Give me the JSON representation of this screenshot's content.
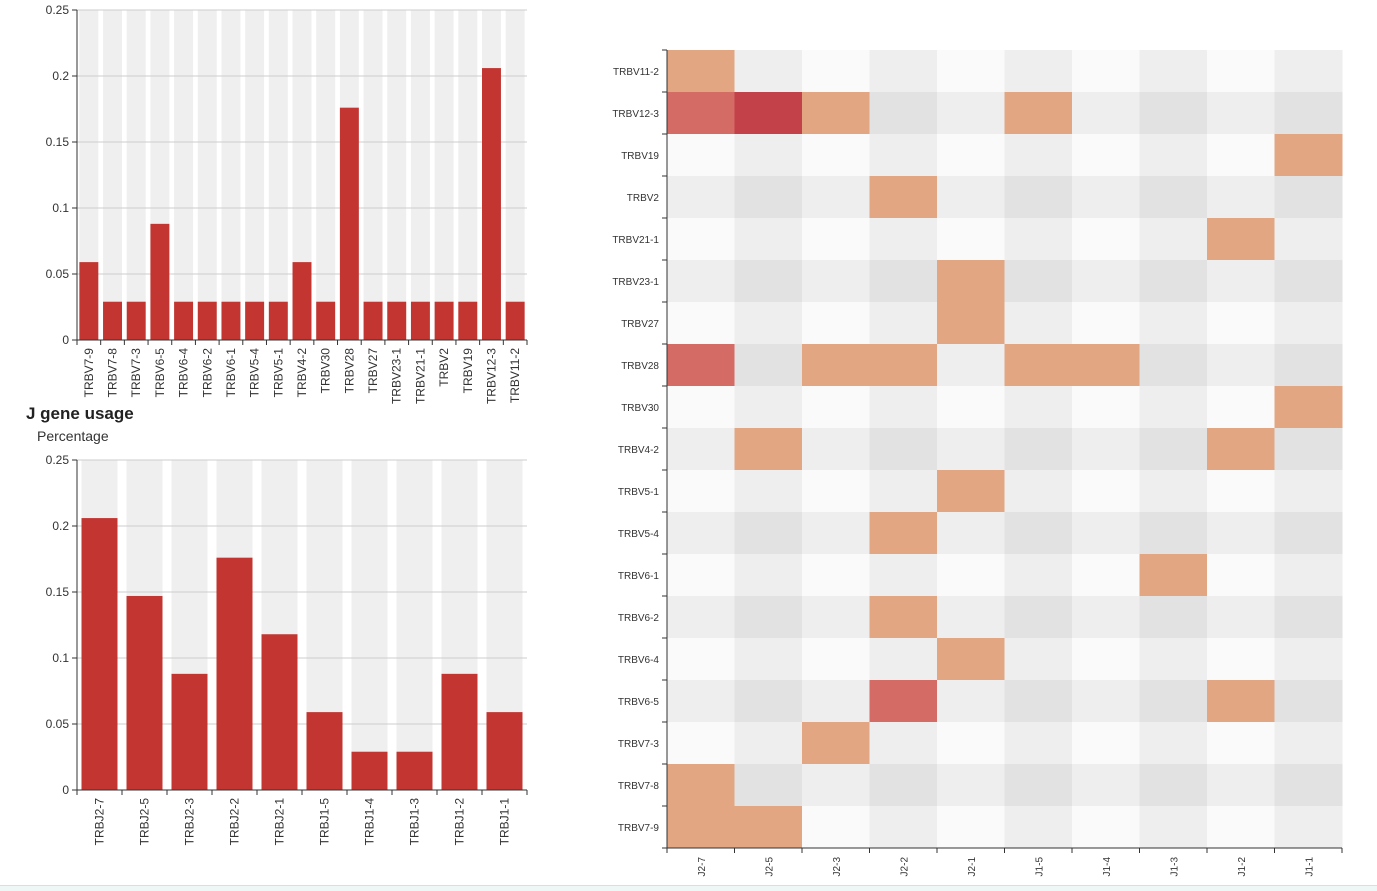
{
  "colors": {
    "bar": "#c23531",
    "bar_background": "#efefef",
    "grid": "#cccccc",
    "axis": "#333333",
    "heat_low": "#e3a683",
    "heat_mid": "#d46b64",
    "heat_high": "#c3424a",
    "stripe_light": "#fafafa",
    "stripe_dark": "#e9e9e9"
  },
  "chart_data": [
    {
      "type": "bar",
      "title": "",
      "ylabel": "",
      "ylim": [
        0,
        0.25
      ],
      "yticks": [
        "0",
        "0.05",
        "0.1",
        "0.15",
        "0.2",
        "0.25"
      ],
      "categories": [
        "TRBV7-9",
        "TRBV7-8",
        "TRBV7-3",
        "TRBV6-5",
        "TRBV6-4",
        "TRBV6-2",
        "TRBV6-1",
        "TRBV5-4",
        "TRBV5-1",
        "TRBV4-2",
        "TRBV30",
        "TRBV28",
        "TRBV27",
        "TRBV23-1",
        "TRBV21-1",
        "TRBV2",
        "TRBV19",
        "TRBV12-3",
        "TRBV11-2"
      ],
      "values": [
        0.059,
        0.029,
        0.029,
        0.088,
        0.029,
        0.029,
        0.029,
        0.029,
        0.029,
        0.059,
        0.029,
        0.176,
        0.029,
        0.029,
        0.029,
        0.029,
        0.029,
        0.206,
        0.029
      ],
      "grid": true,
      "background_bars": true
    },
    {
      "type": "bar",
      "title": "J gene usage",
      "subtitle": "Percentage",
      "ylim": [
        0,
        0.25
      ],
      "yticks": [
        "0",
        "0.05",
        "0.1",
        "0.15",
        "0.2",
        "0.25"
      ],
      "categories": [
        "TRBJ2-7",
        "TRBJ2-5",
        "TRBJ2-3",
        "TRBJ2-2",
        "TRBJ2-1",
        "TRBJ1-5",
        "TRBJ1-4",
        "TRBJ1-3",
        "TRBJ1-2",
        "TRBJ1-1"
      ],
      "values": [
        0.206,
        0.147,
        0.088,
        0.176,
        0.118,
        0.059,
        0.029,
        0.029,
        0.088,
        0.059
      ],
      "grid": true,
      "background_bars": true
    },
    {
      "type": "heatmap",
      "title": "",
      "x": [
        "J2-7",
        "J2-5",
        "J2-3",
        "J2-2",
        "J2-1",
        "J1-5",
        "J1-4",
        "J1-3",
        "J1-2",
        "J1-1"
      ],
      "y": [
        "TRBV11-2",
        "TRBV12-3",
        "TRBV19",
        "TRBV2",
        "TRBV21-1",
        "TRBV23-1",
        "TRBV27",
        "TRBV28",
        "TRBV30",
        "TRBV4-2",
        "TRBV5-1",
        "TRBV5-4",
        "TRBV6-1",
        "TRBV6-2",
        "TRBV6-4",
        "TRBV6-5",
        "TRBV7-3",
        "TRBV7-8",
        "TRBV7-9"
      ],
      "values": [
        [
          1,
          0,
          0,
          0,
          0,
          0,
          0,
          0,
          0,
          0
        ],
        [
          2,
          3,
          1,
          0,
          0,
          1,
          0,
          0,
          0,
          0
        ],
        [
          0,
          0,
          0,
          0,
          0,
          0,
          0,
          0,
          0,
          1
        ],
        [
          0,
          0,
          0,
          1,
          0,
          0,
          0,
          0,
          0,
          0
        ],
        [
          0,
          0,
          0,
          0,
          0,
          0,
          0,
          0,
          1,
          0
        ],
        [
          0,
          0,
          0,
          0,
          1,
          0,
          0,
          0,
          0,
          0
        ],
        [
          0,
          0,
          0,
          0,
          1,
          0,
          0,
          0,
          0,
          0
        ],
        [
          2,
          0,
          1,
          1,
          0,
          1,
          1,
          0,
          0,
          0
        ],
        [
          0,
          0,
          0,
          0,
          0,
          0,
          0,
          0,
          0,
          1
        ],
        [
          0,
          1,
          0,
          0,
          0,
          0,
          0,
          0,
          1,
          0
        ],
        [
          0,
          0,
          0,
          0,
          1,
          0,
          0,
          0,
          0,
          0
        ],
        [
          0,
          0,
          0,
          1,
          0,
          0,
          0,
          0,
          0,
          0
        ],
        [
          0,
          0,
          0,
          0,
          0,
          0,
          0,
          1,
          0,
          0
        ],
        [
          0,
          0,
          0,
          1,
          0,
          0,
          0,
          0,
          0,
          0
        ],
        [
          0,
          0,
          0,
          0,
          1,
          0,
          0,
          0,
          0,
          0
        ],
        [
          0,
          0,
          0,
          2,
          0,
          0,
          0,
          0,
          1,
          0
        ],
        [
          0,
          0,
          1,
          0,
          0,
          0,
          0,
          0,
          0,
          0
        ],
        [
          1,
          0,
          0,
          0,
          0,
          0,
          0,
          0,
          0,
          0
        ],
        [
          1,
          1,
          0,
          0,
          0,
          0,
          0,
          0,
          0,
          0
        ]
      ]
    }
  ]
}
